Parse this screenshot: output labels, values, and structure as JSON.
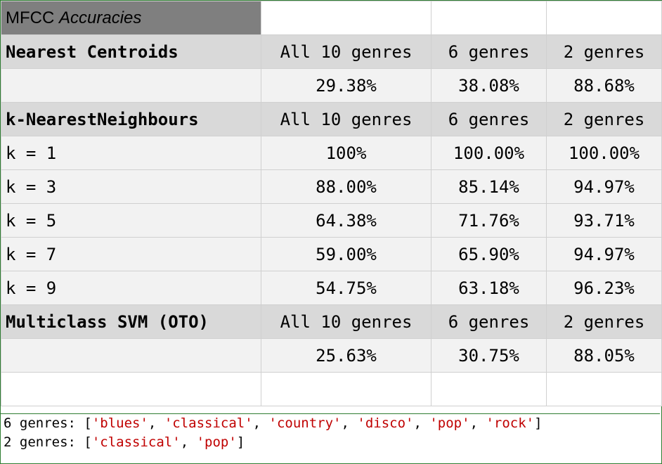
{
  "title": {
    "prefix": "MFCC",
    "italic": "Accuracies"
  },
  "columns": [
    "All 10 genres",
    "6 genres",
    "2 genres"
  ],
  "sections": {
    "nearest_centroids": {
      "label": "Nearest Centroids",
      "row": {
        "label": "",
        "values": [
          "29.38%",
          "38.08%",
          "88.68%"
        ]
      }
    },
    "knn": {
      "label": "k-NearestNeighbours",
      "rows": [
        {
          "label": "k = 1",
          "values": [
            "100%",
            "100.00%",
            "100.00%"
          ]
        },
        {
          "label": "k = 3",
          "values": [
            "88.00%",
            "85.14%",
            "94.97%"
          ]
        },
        {
          "label": "k = 5",
          "values": [
            "64.38%",
            "71.76%",
            "93.71%"
          ]
        },
        {
          "label": "k = 7",
          "values": [
            "59.00%",
            "65.90%",
            "94.97%"
          ]
        },
        {
          "label": "k = 9",
          "values": [
            "54.75%",
            "63.18%",
            "96.23%"
          ]
        }
      ]
    },
    "svm": {
      "label": "Multiclass SVM (OTO)",
      "row": {
        "label": "",
        "values": [
          "25.63%",
          "30.75%",
          "88.05%"
        ]
      }
    }
  },
  "notes": [
    {
      "prefix": "6 genres: [",
      "items": [
        "'blues'",
        "'classical'",
        "'country'",
        "'disco'",
        "'pop'",
        "'rock'"
      ],
      "suffix": "]"
    },
    {
      "prefix": "2 genres: [",
      "items": [
        "'classical'",
        "'pop'"
      ],
      "suffix": "]"
    }
  ],
  "colors": {
    "title_bg": "#7f7f7f",
    "header_bg": "#d9d9d9",
    "value_bg": "#f2f2f2",
    "string": "#c00000",
    "frame": "#2e7d32"
  }
}
